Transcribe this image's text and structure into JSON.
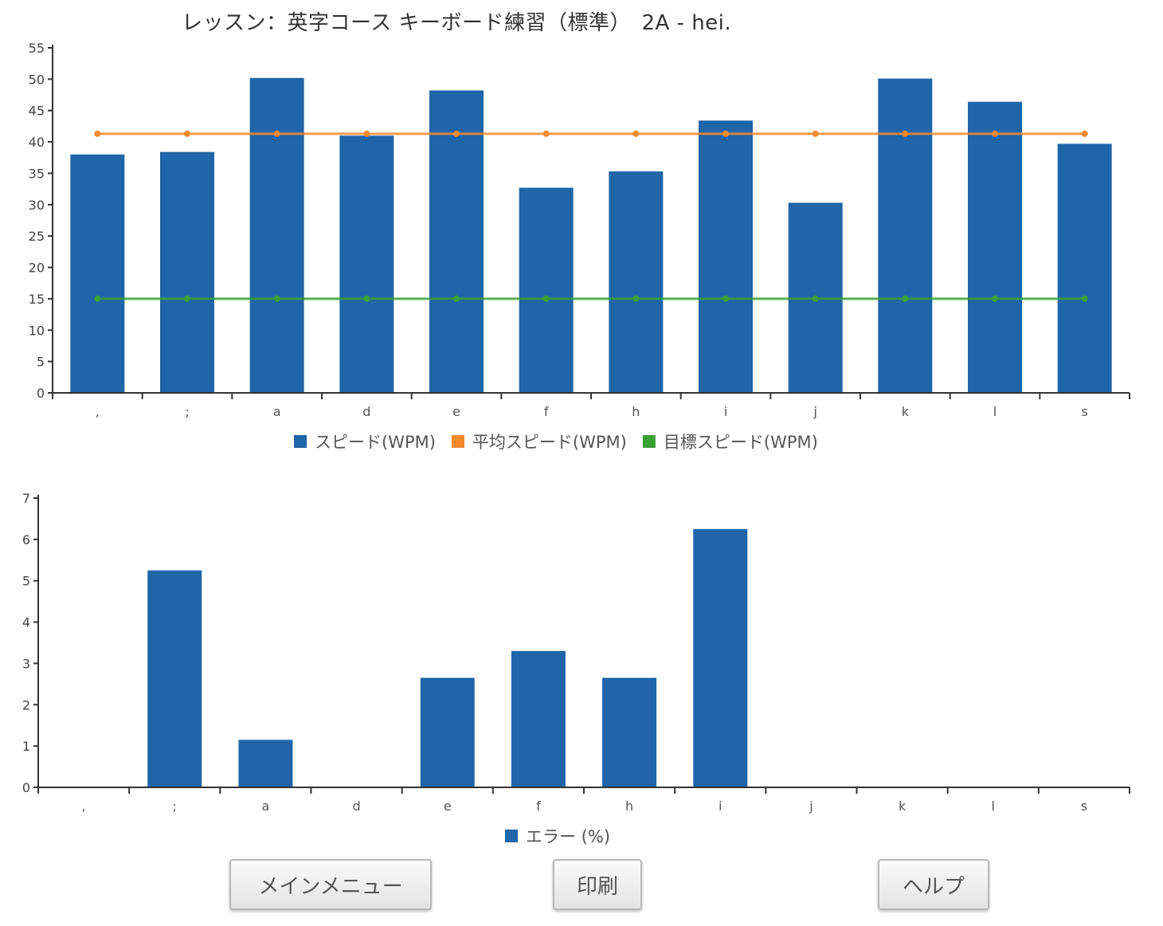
{
  "title": "レッスン：英字コース キーボード練習（標準）　2A - hei.",
  "colors": {
    "bar": "#1f65a8",
    "avg": "#f28a2e",
    "target": "#3aa135",
    "axis": "#333333"
  },
  "chart_data": [
    {
      "type": "bar",
      "categories": [
        ",",
        ";",
        "a",
        "d",
        "e",
        "f",
        "h",
        "i",
        "j",
        "k",
        "l",
        "s"
      ],
      "ylim": [
        0,
        55
      ],
      "yticks": [
        0,
        5,
        10,
        15,
        20,
        25,
        30,
        35,
        40,
        45,
        50,
        55
      ],
      "series": [
        {
          "name": "スピード(WPM)",
          "kind": "bar",
          "color": "#1f65a8",
          "values": [
            38,
            38.4,
            50.2,
            41,
            48.2,
            32.7,
            35.3,
            43.4,
            30.3,
            50.1,
            46.4,
            39.7
          ]
        },
        {
          "name": "平均スピード(WPM)",
          "kind": "line",
          "color": "#f28a2e",
          "values": [
            41.3,
            41.3,
            41.3,
            41.3,
            41.3,
            41.3,
            41.3,
            41.3,
            41.3,
            41.3,
            41.3,
            41.3
          ]
        },
        {
          "name": "目標スピード(WPM)",
          "kind": "line",
          "color": "#3aa135",
          "values": [
            15,
            15,
            15,
            15,
            15,
            15,
            15,
            15,
            15,
            15,
            15,
            15
          ]
        }
      ]
    },
    {
      "type": "bar",
      "categories": [
        ",",
        ";",
        "a",
        "d",
        "e",
        "f",
        "h",
        "i",
        "j",
        "k",
        "l",
        "s"
      ],
      "ylim": [
        0,
        7
      ],
      "yticks": [
        0,
        1,
        2,
        3,
        4,
        5,
        6,
        7
      ],
      "series": [
        {
          "name": "エラー (%)",
          "kind": "bar",
          "color": "#1f65a8",
          "values": [
            0,
            5.25,
            1.15,
            0,
            2.65,
            3.3,
            2.65,
            6.25,
            0,
            0,
            0,
            0
          ]
        }
      ]
    }
  ],
  "buttons": {
    "main_menu": "メインメニュー",
    "print": "印刷",
    "help": "ヘルプ"
  }
}
